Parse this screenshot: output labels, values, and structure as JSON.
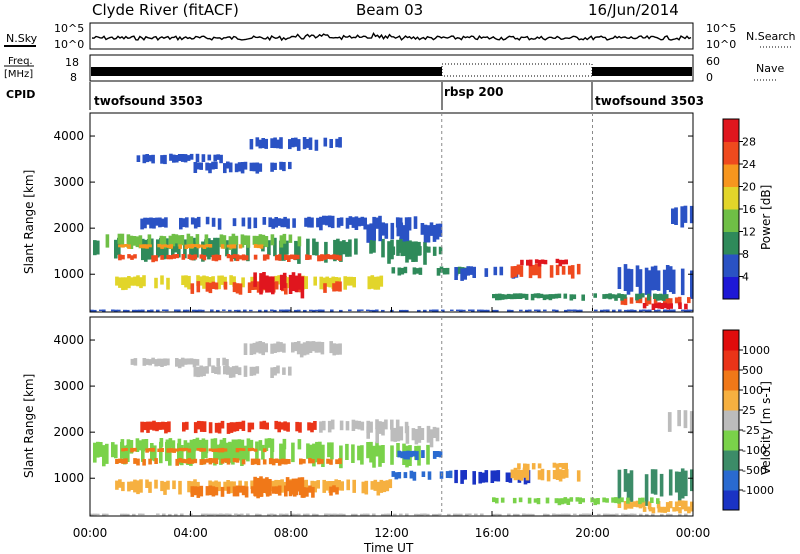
{
  "header": {
    "station": "Clyde River (fitACF)",
    "beam": "Beam 03",
    "date": "16/Jun/2014"
  },
  "noise_panel": {
    "left_label": "N.Sky",
    "right_label": "N.Search",
    "ticks": [
      "10^5",
      "10^0"
    ],
    "right_ticks": [
      "10^5",
      "10^0"
    ]
  },
  "freq_panel": {
    "left_label_1": "Freq.",
    "left_label_2": "[MHz]",
    "left_ticks": [
      "18",
      "8"
    ],
    "right_label": "Nave",
    "right_ticks": [
      "60",
      "0"
    ]
  },
  "cpid": {
    "label": "CPID",
    "segments": [
      {
        "name": "twofsound 3503",
        "start_hour": 0,
        "end_hour": 14
      },
      {
        "name": "rbsp 200",
        "start_hour": 14,
        "end_hour": 20
      },
      {
        "name": "twofsound 3503",
        "start_hour": 20,
        "end_hour": 24
      }
    ]
  },
  "chart_data": [
    {
      "type": "heatmap",
      "name": "power",
      "ylabel": "Slant Range [km]",
      "yticks": [
        1000,
        2000,
        3000,
        4000
      ],
      "ylim": [
        180,
        4500
      ],
      "xlim": [
        0,
        24
      ],
      "colorbar": {
        "label": "Power [dB]",
        "ticks": [
          "28",
          "24",
          "20",
          "16",
          "12",
          "8",
          "4"
        ],
        "colors": [
          "#1e18d6",
          "#2a52c4",
          "#2f8a5a",
          "#6fbf46",
          "#e2d52a",
          "#f7961e",
          "#ef4a1e",
          "#e0161e"
        ]
      }
    },
    {
      "type": "heatmap",
      "name": "velocity",
      "ylabel": "Slant Range [km]",
      "xlabel": "Time UT",
      "yticks": [
        1000,
        2000,
        3000,
        4000
      ],
      "ylim": [
        180,
        4500
      ],
      "xlim": [
        0,
        24
      ],
      "xticks": [
        "00:00",
        "04:00",
        "08:00",
        "12:00",
        "16:00",
        "20:00",
        "00:00"
      ],
      "colorbar": {
        "label": "Velocity [m s-1]",
        "ticks": [
          "1000",
          "500",
          "100",
          "25",
          "-25",
          "-100",
          "-500",
          "-1000"
        ],
        "colors": [
          "#1a33c4",
          "#2a6ad0",
          "#3c8c68",
          "#7ad24a",
          "#bcbcbc",
          "#f6b040",
          "#f07818",
          "#ea3418",
          "#e00c0c"
        ]
      }
    }
  ]
}
